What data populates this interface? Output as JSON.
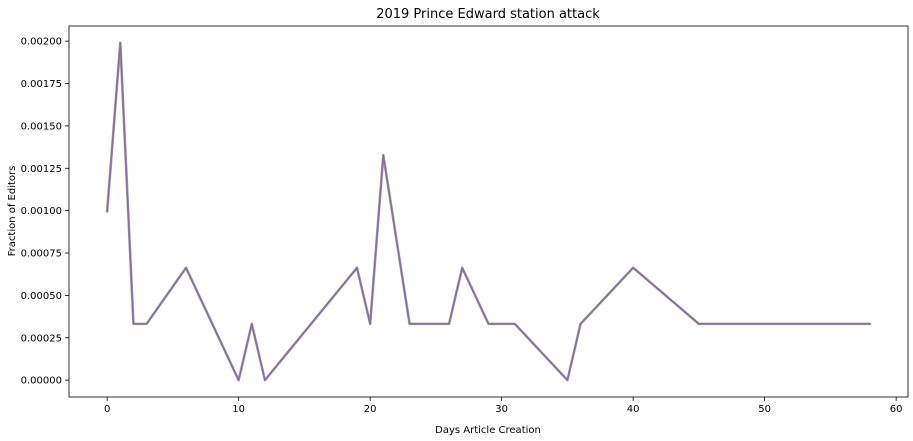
{
  "chart_data": {
    "type": "line",
    "title": "2019 Prince Edward station attack",
    "xlabel": "Days Article Creation",
    "ylabel": "Fraction of Editors",
    "xlim": [
      -2.9,
      60.9
    ],
    "ylim": [
      -9.95e-05,
      0.0020895
    ],
    "xticks": [
      0,
      10,
      20,
      30,
      40,
      50,
      60
    ],
    "xtick_labels": [
      "0",
      "10",
      "20",
      "30",
      "40",
      "50",
      "60"
    ],
    "yticks": [
      0,
      0.00025,
      0.0005,
      0.00075,
      0.001,
      0.00125,
      0.0015,
      0.00175,
      0.002
    ],
    "ytick_labels": [
      "0.00000",
      "0.00025",
      "0.00050",
      "0.00075",
      "0.00100",
      "0.00125",
      "0.00150",
      "0.00175",
      "0.00200"
    ],
    "grid": false,
    "series": [
      {
        "color": "#8a6ca8",
        "x": [
          0,
          1,
          2,
          3,
          6,
          10,
          11,
          12,
          19,
          20,
          21,
          23,
          26,
          27,
          29,
          31,
          35,
          36,
          40,
          45,
          58
        ],
        "y": [
          0.000995,
          0.00199,
          0.000332,
          0.000332,
          0.000663,
          0.0,
          0.000332,
          0.0,
          0.000663,
          0.000332,
          0.001327,
          0.000332,
          0.000332,
          0.000663,
          0.000332,
          0.000332,
          0.0,
          0.000332,
          0.000663,
          0.000332,
          0.000332
        ]
      }
    ]
  }
}
